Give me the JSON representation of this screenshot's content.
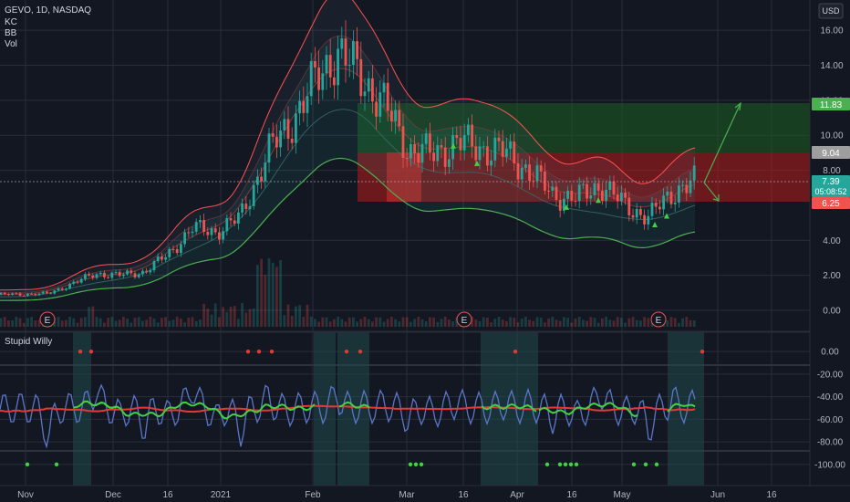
{
  "header": {
    "symbol": "GEVO, 1D, NASDAQ",
    "indicators": [
      "KC",
      "BB",
      "Vol"
    ],
    "currency": "USD"
  },
  "lower_pane": {
    "title": "Stupid Willy"
  },
  "price_tags": {
    "target": "11.83",
    "entry": "9.04",
    "last": "7.39",
    "countdown": "05:08:52",
    "stop": "6.25"
  },
  "earnings_marker": "E",
  "colors": {
    "background": "#131722",
    "grid": "#2a2e39",
    "up": "#26a69a",
    "down": "#ef5350",
    "keltner": "#ff5252",
    "bollinger": "#4caf50",
    "stupid_willy_line": "#5b76c9",
    "signal_red": "#e53935",
    "signal_green": "#43d143",
    "profit_zone": "#1b5e20",
    "loss_zone": "#b71c1c"
  },
  "chart_data": [
    {
      "type": "candlestick",
      "x_tick_labels": [
        "Nov",
        "Dec",
        "16",
        "2021",
        "Feb",
        "Mar",
        "16",
        "Apr",
        "16",
        "May",
        "Jun",
        "16"
      ],
      "y_tick_labels": [
        "16.00",
        "14.00",
        "12.00",
        "10.00",
        "8.00",
        "4.00",
        "2.00",
        "0.00"
      ],
      "ylim": [
        0,
        17
      ],
      "y_scale": "linear",
      "grid": true,
      "overlays": [
        "Keltner Channel",
        "Bollinger Bands",
        "Volume"
      ],
      "close_series": {
        "x": [
          "2020-11-02",
          "2020-11-16",
          "2020-11-30",
          "2020-12-07",
          "2020-12-14",
          "2020-12-21",
          "2020-12-28",
          "2021-01-04",
          "2021-01-11",
          "2021-01-19",
          "2021-01-25",
          "2021-02-01",
          "2021-02-08",
          "2021-02-16",
          "2021-02-22",
          "2021-03-01",
          "2021-03-08",
          "2021-03-15",
          "2021-03-22",
          "2021-03-29",
          "2021-04-05",
          "2021-04-12",
          "2021-04-19",
          "2021-04-26",
          "2021-05-03",
          "2021-05-10",
          "2021-05-17",
          "2021-05-24"
        ],
        "values": [
          0.9,
          0.95,
          2.1,
          2.0,
          2.2,
          3.2,
          4.7,
          4.5,
          5.3,
          9.0,
          10.5,
          12.8,
          14.8,
          13.2,
          11.7,
          9.2,
          8.9,
          9.6,
          9.3,
          9.0,
          8.0,
          6.6,
          6.4,
          7.2,
          6.0,
          5.3,
          6.8,
          7.39
        ]
      },
      "trade_idea": {
        "target": 11.83,
        "entry": 9.04,
        "stop": 6.25,
        "last": 7.39
      }
    },
    {
      "type": "line",
      "name": "Stupid Willy",
      "y_tick_labels": [
        "0.00",
        "-20.00",
        "-40.00",
        "-60.00",
        "-80.00",
        "-100.00"
      ],
      "ylim": [
        -105,
        5
      ],
      "grid": true
    }
  ]
}
